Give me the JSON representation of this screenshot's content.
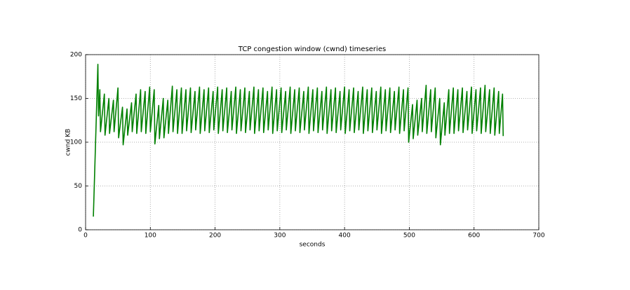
{
  "chart_data": {
    "type": "line",
    "title": "TCP congestion window (cwnd) timeseries",
    "x_label": "seconds",
    "y_label": "cwnd KB",
    "xlim": [
      0,
      700
    ],
    "xticks": [
      0,
      100,
      200,
      300,
      400,
      500,
      600,
      700
    ],
    "ylim": [
      0,
      200
    ],
    "yticks": [
      0,
      50,
      100,
      150,
      200
    ],
    "grid": true,
    "series": [
      {
        "color": "#008000",
        "x": [
          12,
          19,
          20,
          22,
          23,
          29,
          30,
          36,
          37,
          43,
          44,
          50,
          51,
          57,
          58,
          64,
          65,
          71,
          72,
          78,
          79,
          85,
          86,
          92,
          93,
          99,
          100,
          106,
          107,
          113,
          114,
          120,
          121,
          127,
          128,
          134,
          135,
          141,
          142,
          148,
          149,
          155,
          156,
          162,
          163,
          169,
          170,
          176,
          177,
          183,
          184,
          190,
          191,
          197,
          198,
          204,
          205,
          211,
          212,
          218,
          219,
          225,
          226,
          232,
          233,
          239,
          240,
          246,
          247,
          253,
          254,
          260,
          261,
          267,
          268,
          274,
          275,
          281,
          282,
          288,
          289,
          295,
          296,
          302,
          303,
          309,
          310,
          316,
          317,
          323,
          324,
          330,
          331,
          337,
          338,
          344,
          345,
          351,
          352,
          358,
          359,
          365,
          366,
          372,
          373,
          379,
          380,
          386,
          387,
          393,
          394,
          400,
          401,
          407,
          408,
          414,
          415,
          421,
          422,
          428,
          429,
          435,
          436,
          442,
          443,
          449,
          450,
          456,
          457,
          463,
          464,
          470,
          471,
          477,
          478,
          484,
          485,
          491,
          492,
          498,
          499,
          505,
          506,
          512,
          513,
          519,
          520,
          526,
          527,
          533,
          534,
          540,
          541,
          547,
          548,
          554,
          555,
          561,
          562,
          568,
          569,
          575,
          576,
          582,
          583,
          589,
          590,
          596,
          597,
          603,
          604,
          610,
          611,
          617,
          618,
          624,
          625,
          631,
          632,
          638,
          639,
          644,
          645
        ],
        "values": [
          15,
          189,
          130,
          160,
          112,
          155,
          108,
          150,
          110,
          148,
          112,
          162,
          105,
          140,
          97,
          138,
          108,
          145,
          112,
          155,
          110,
          160,
          112,
          158,
          110,
          163,
          112,
          160,
          98,
          142,
          104,
          150,
          105,
          148,
          110,
          164,
          112,
          160,
          110,
          162,
          110,
          160,
          113,
          162,
          111,
          158,
          114,
          163,
          110,
          160,
          113,
          162,
          111,
          158,
          114,
          163,
          110,
          160,
          113,
          162,
          111,
          158,
          114,
          163,
          110,
          160,
          113,
          162,
          111,
          158,
          114,
          163,
          110,
          160,
          113,
          162,
          111,
          158,
          114,
          163,
          110,
          160,
          113,
          162,
          111,
          158,
          114,
          163,
          110,
          160,
          113,
          162,
          111,
          158,
          114,
          163,
          110,
          160,
          113,
          162,
          111,
          158,
          114,
          163,
          110,
          160,
          113,
          162,
          111,
          158,
          114,
          163,
          110,
          160,
          113,
          162,
          111,
          158,
          114,
          163,
          110,
          160,
          113,
          162,
          111,
          158,
          114,
          163,
          110,
          160,
          113,
          162,
          111,
          158,
          114,
          163,
          110,
          160,
          113,
          162,
          100,
          143,
          104,
          148,
          108,
          150,
          112,
          165,
          110,
          160,
          112,
          162,
          105,
          150,
          97,
          145,
          108,
          160,
          110,
          162,
          110,
          160,
          113,
          162,
          111,
          158,
          114,
          163,
          110,
          160,
          113,
          162,
          110,
          165,
          112,
          160,
          110,
          162,
          108,
          158,
          110,
          155,
          107
        ]
      }
    ]
  }
}
